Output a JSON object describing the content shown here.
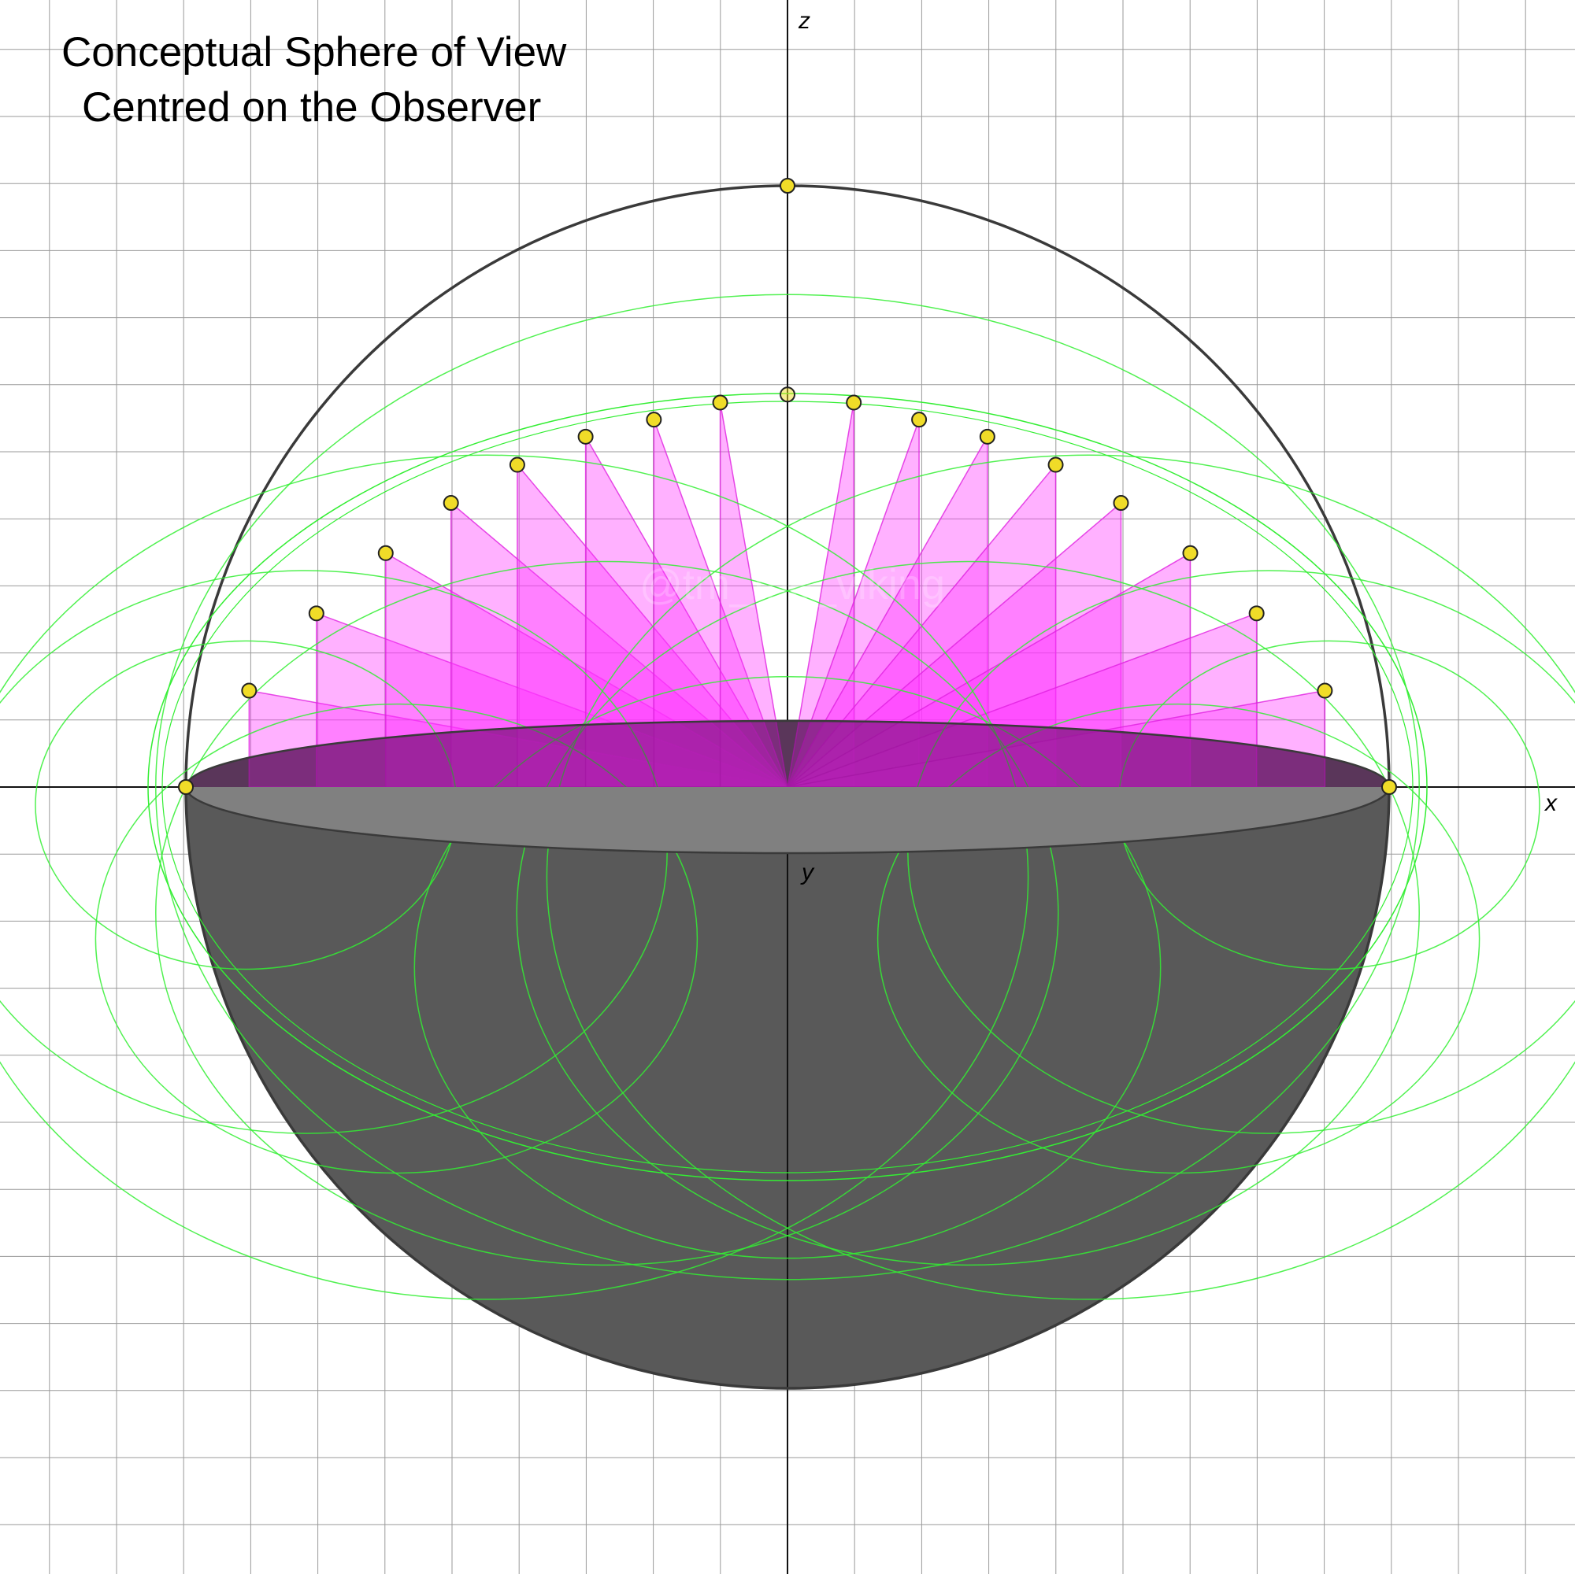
{
  "title": {
    "line1": "Conceptual Sphere of View",
    "line2": "Centred on the Observer"
  },
  "axes": {
    "x_label": "x",
    "y_label": "y",
    "z_label": "z"
  },
  "watermark": "@tm_the_viking",
  "colors": {
    "background": "#ffffff",
    "grid": "#9a9a9a",
    "axis": "#111111",
    "sphere_outline": "#3a3a3a",
    "lower_hemisphere": "#595959",
    "equator_disc": "#808080",
    "wedge_fill": "#ff33ff",
    "wedge_stroke": "#e020e0",
    "green_circles": "#33ee33",
    "marker_fill": "#f0dc28",
    "marker_stroke": "#222222"
  },
  "markers": {
    "count": 21,
    "elevation_steps_deg": [
      10,
      20,
      30,
      40,
      50,
      60,
      70,
      80
    ]
  }
}
